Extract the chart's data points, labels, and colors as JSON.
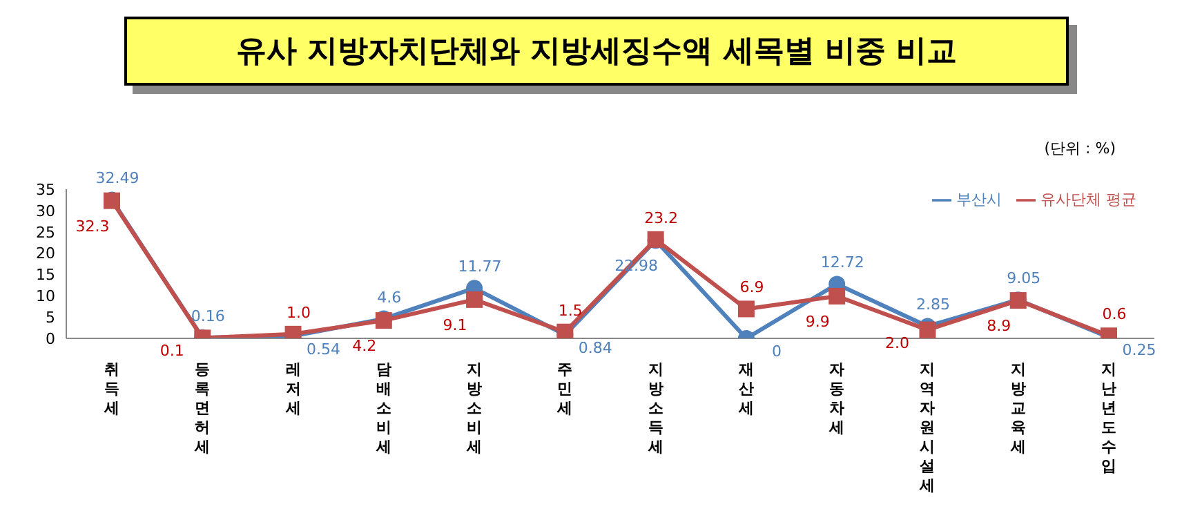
{
  "chart_data": {
    "type": "line",
    "title": "유사 지방자치단체와 지방세징수액 세목별 비중 비교",
    "annotations": [
      "(단위 : %)"
    ],
    "categories": [
      "취득세",
      "등록면허세",
      "레저세",
      "담배소비세",
      "지방소비세",
      "주민세",
      "지방소득세",
      "재산세",
      "자동차세",
      "지역자원시설세",
      "지방교육세",
      "지난년도수입"
    ],
    "series": [
      {
        "name": "부산시",
        "color": "#4f81bd",
        "marker": "circle",
        "values": [
          32.49,
          0.16,
          0.54,
          4.6,
          11.77,
          0.84,
          22.98,
          0,
          12.72,
          2.85,
          9.05,
          0.25
        ],
        "value_labels": [
          "32.49",
          "0.16",
          "0.54",
          "4.6",
          "11.77",
          "0.84",
          "22.98",
          "0",
          "12.72",
          "2.85",
          "9.05",
          "0.25"
        ]
      },
      {
        "name": "유사단체 평균",
        "color": "#c0504d",
        "marker": "square",
        "values": [
          32.3,
          0.1,
          1.0,
          4.2,
          9.1,
          1.5,
          23.2,
          6.9,
          9.9,
          2.0,
          8.9,
          0.6
        ],
        "value_labels": [
          "32.3",
          "0.1",
          "1.0",
          "4.2",
          "9.1",
          "1.5",
          "23.2",
          "6.9",
          "9.9",
          "2.0",
          "8.9",
          "0.6"
        ]
      }
    ],
    "ylim": [
      0,
      35
    ],
    "yticks": [
      0,
      5,
      10,
      15,
      20,
      25,
      30,
      35
    ],
    "legend": "top right"
  }
}
